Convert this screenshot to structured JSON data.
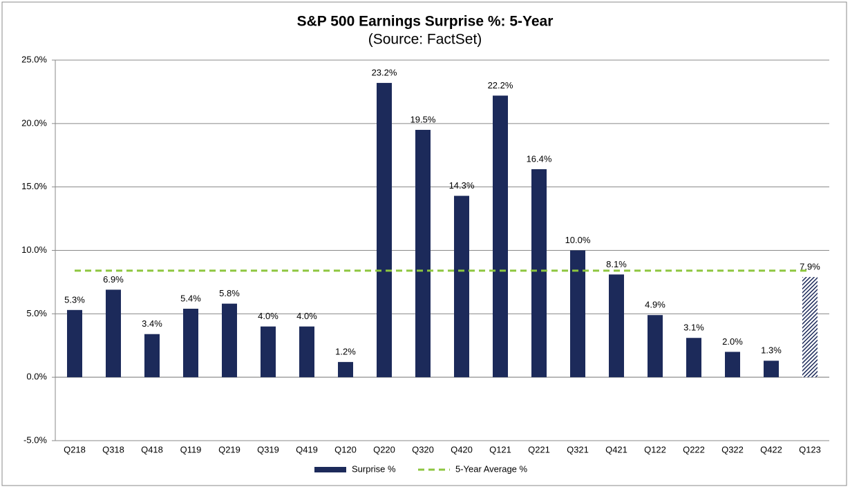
{
  "chart_data": {
    "type": "bar",
    "title": "S&P 500 Earnings Surprise %: 5-Year",
    "subtitle": "(Source: FactSet)",
    "categories": [
      "Q218",
      "Q318",
      "Q418",
      "Q119",
      "Q219",
      "Q319",
      "Q419",
      "Q120",
      "Q220",
      "Q320",
      "Q420",
      "Q121",
      "Q221",
      "Q321",
      "Q421",
      "Q122",
      "Q222",
      "Q322",
      "Q422",
      "Q123"
    ],
    "series": [
      {
        "name": "Surprise %",
        "color": "#1c2a5a",
        "values": [
          5.3,
          6.9,
          3.4,
          5.4,
          5.8,
          4.0,
          4.0,
          1.2,
          23.2,
          19.5,
          14.3,
          22.2,
          16.4,
          10.0,
          8.1,
          4.9,
          3.1,
          2.0,
          1.3,
          7.9
        ],
        "value_labels": [
          "5.3%",
          "6.9%",
          "3.4%",
          "5.4%",
          "5.8%",
          "4.0%",
          "4.0%",
          "1.2%",
          "23.2%",
          "19.5%",
          "14.3%",
          "22.2%",
          "16.4%",
          "10.0%",
          "8.1%",
          "4.9%",
          "3.1%",
          "2.0%",
          "1.3%",
          "7.9%"
        ],
        "hatched": [
          19
        ]
      },
      {
        "name": "5-Year Average %",
        "color": "#8dc63f",
        "line_style": "dashed",
        "values": [
          8.4,
          8.4,
          8.4,
          8.4,
          8.4,
          8.4,
          8.4,
          8.4,
          8.4,
          8.4,
          8.4,
          8.4,
          8.4,
          8.4,
          8.4,
          8.4,
          8.4,
          8.4,
          8.4,
          8.4
        ]
      }
    ],
    "ylim": [
      -5,
      25
    ],
    "yticks": [
      {
        "value": -5,
        "label": "-5.0%"
      },
      {
        "value": 0,
        "label": "0.0%"
      },
      {
        "value": 5,
        "label": "5.0%"
      },
      {
        "value": 10,
        "label": "10.0%"
      },
      {
        "value": 15,
        "label": "15.0%"
      },
      {
        "value": 20,
        "label": "20.0%"
      },
      {
        "value": 25,
        "label": "25.0%"
      }
    ],
    "grid": true,
    "legend": "bottom"
  }
}
